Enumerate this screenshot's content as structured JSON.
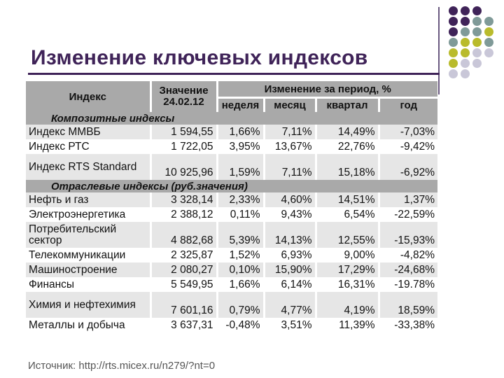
{
  "title": "Изменение ключевых индексов",
  "colors": {
    "title": "#3f2358",
    "header_bg": "#a9a9a9",
    "row_alt_bg": "#e6e6e6",
    "dot_purple": "#3f2358",
    "dot_teal": "#7f9a98",
    "dot_olive": "#b9bb2c",
    "dot_lavender": "#c9c7d8"
  },
  "decoration": {
    "dot_grid": [
      [
        "purple",
        "purple",
        "purple",
        "none"
      ],
      [
        "purple",
        "purple",
        "teal",
        "teal"
      ],
      [
        "purple",
        "teal",
        "teal",
        "olive"
      ],
      [
        "teal",
        "olive",
        "olive",
        "teal"
      ],
      [
        "olive",
        "olive",
        "lavender",
        "lavender"
      ],
      [
        "olive",
        "lavender",
        "lavender",
        "none"
      ],
      [
        "lavender",
        "lavender",
        "none",
        "none"
      ]
    ]
  },
  "table": {
    "header": {
      "index": "Индекс",
      "value": "Значение 24.02.12",
      "change": "Изменение за период, %",
      "periods": [
        "неделя",
        "месяц",
        "квартал",
        "год"
      ]
    },
    "sections": [
      {
        "title": "Композитные индексы",
        "rows": [
          {
            "name": "Индекс ММВБ",
            "value": "1 594,55",
            "week": "1,66%",
            "month": "7,11%",
            "quarter": "14,49%",
            "year": "-7,03%"
          },
          {
            "name": "Индекс РТС",
            "value": "1 722,05",
            "week": "3,95%",
            "month": "13,67%",
            "quarter": "22,76%",
            "year": "-9,42%"
          },
          {
            "name": "Индекс RTS Standard",
            "value": "10 925,96",
            "week": "1,59%",
            "month": "7,11%",
            "quarter": "15,18%",
            "year": "-6,92%"
          }
        ]
      },
      {
        "title": "Отраслевые индексы (руб.значения)",
        "rows": [
          {
            "name": "Нефть и газ",
            "value": "3 328,14",
            "week": "2,33%",
            "month": "4,60%",
            "quarter": "14,51%",
            "year": "1,37%"
          },
          {
            "name": "Электроэнергетика",
            "value": "2 388,12",
            "week": "0,11%",
            "month": "9,43%",
            "quarter": "6,54%",
            "year": "-22,59%"
          },
          {
            "name": "Потребительский сектор",
            "value": "4 882,68",
            "week": "5,39%",
            "month": "14,13%",
            "quarter": "12,55%",
            "year": "-15,93%"
          },
          {
            "name": "Телекоммуникации",
            "value": "2 325,87",
            "week": "1,52%",
            "month": "6,93%",
            "quarter": "9,00%",
            "year": "-4,82%"
          },
          {
            "name": "Машиностроение",
            "value": "2 080,27",
            "week": "0,10%",
            "month": "15,90%",
            "quarter": "17,29%",
            "year": "-24,68%"
          },
          {
            "name": "Финансы",
            "value": "5 549,95",
            "week": "1,66%",
            "month": "6,14%",
            "quarter": "16,31%",
            "year": "-19.78%"
          },
          {
            "name": "Химия и нефтехимия",
            "value": "7 601,16",
            "week": "0,79%",
            "month": "4,77%",
            "quarter": "4,19%",
            "year": "18,59%"
          },
          {
            "name": "Металлы и добыча",
            "value": "3 637,31",
            "week": "-0,48%",
            "month": "3,51%",
            "quarter": "11,39%",
            "year": "-33,38%"
          }
        ]
      }
    ]
  },
  "source": "Источник: http://rts.micex.ru/n279/?nt=0"
}
